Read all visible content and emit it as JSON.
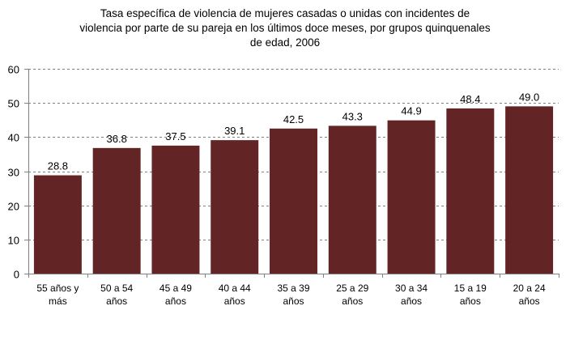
{
  "chart_data": {
    "type": "bar",
    "title_lines": [
      "Tasa específica de violencia de mujeres casadas o unidas con incidentes de",
      "violencia por parte de su pareja en los últimos doce meses, por grupos quinquenales",
      "de edad, 2006"
    ],
    "title": "Tasa específica de violencia de mujeres casadas o unidas con incidentes de violencia por parte de su pareja en los últimos doce meses, por grupos quinquenales de edad, 2006",
    "xlabel": "",
    "ylabel": "",
    "categories": [
      [
        "55 años y",
        "más"
      ],
      [
        "50 a 54",
        "años"
      ],
      [
        "45 a 49",
        "años"
      ],
      [
        "40 a 44",
        "años"
      ],
      [
        "35 a 39",
        "años"
      ],
      [
        "25 a 29",
        "años"
      ],
      [
        "30 a 34",
        "años"
      ],
      [
        "15 a 19",
        "años"
      ],
      [
        "20 a 24",
        "años"
      ]
    ],
    "values": [
      28.8,
      36.8,
      37.5,
      39.1,
      42.5,
      43.3,
      44.9,
      48.4,
      49.0
    ],
    "data_labels": [
      "28.8",
      "36.8",
      "37.5",
      "39.1",
      "42.5",
      "43.3",
      "44.9",
      "48.4",
      "49.0"
    ],
    "ylim": [
      0,
      60
    ],
    "yticks": [
      0,
      10,
      20,
      30,
      40,
      50,
      60
    ],
    "grid": true,
    "grid_style": "dashed",
    "legend": "none",
    "bar_color": "#632425",
    "axis_color": "#808080",
    "grid_color": "#808080"
  }
}
